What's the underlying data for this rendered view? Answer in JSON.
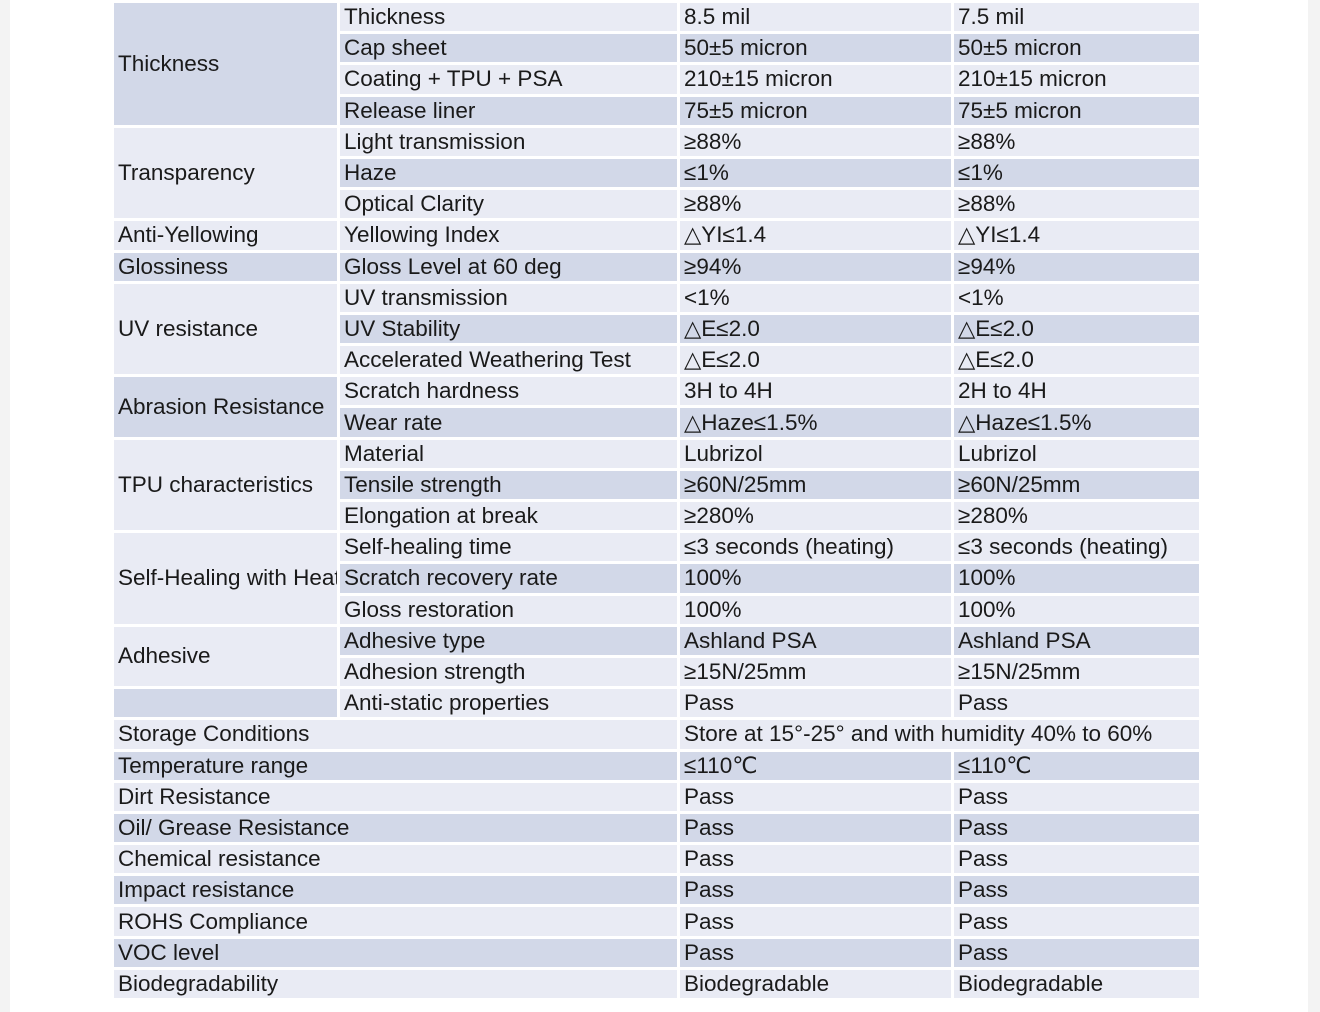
{
  "groups": {
    "thickness": "Thickness",
    "transparency": "Transparency",
    "anti_yellowing": "Anti-Yellowing",
    "glossiness": "Glossiness",
    "uv_resistance": "UV resistance",
    "abrasion": "Abrasion Resistance",
    "tpu": "TPU characteristics",
    "self_healing": "Self-Healing  with Heat",
    "adhesive": "Adhesive",
    "blank": ""
  },
  "rows": [
    {
      "param": "Thickness",
      "a": "8.5 mil",
      "b": "7.5 mil"
    },
    {
      "param": "Cap sheet",
      "a": "50±5 micron",
      "b": "50±5 micron"
    },
    {
      "param": "Coating + TPU + PSA",
      "a": "210±15 micron",
      "b": "210±15 micron"
    },
    {
      "param": "Release liner",
      "a": "75±5 micron",
      "b": "75±5 micron"
    },
    {
      "param": "Light transmission",
      "a": "≥88%",
      "b": "≥88%"
    },
    {
      "param": "Haze",
      "a": "≤1%",
      "b": "≤1%"
    },
    {
      "param": "Optical Clarity",
      "a": "≥88%",
      "b": "≥88%"
    },
    {
      "param": "Yellowing Index",
      "a": "△YI≤1.4",
      "b": "△YI≤1.4"
    },
    {
      "param": "Gloss Level at 60 deg",
      "a": "≥94%",
      "b": "≥94%"
    },
    {
      "param": "UV transmission",
      "a": "<1%",
      "b": "<1%"
    },
    {
      "param": "UV Stability",
      "a": "△E≤2.0",
      "b": "△E≤2.0"
    },
    {
      "param": "Accelerated Weathering Test",
      "a": "△E≤2.0",
      "b": "△E≤2.0"
    },
    {
      "param": "Scratch hardness",
      "a": "3H to 4H",
      "b": "2H to 4H"
    },
    {
      "param": "Wear rate",
      "a": "△Haze≤1.5%",
      "b": "△Haze≤1.5%"
    },
    {
      "param": "Material",
      "a": "Lubrizol",
      "b": "Lubrizol"
    },
    {
      "param": "Tensile strength",
      "a": "≥60N/25mm",
      "b": "≥60N/25mm"
    },
    {
      "param": "Elongation at break",
      "a": "≥280%",
      "b": "≥280%"
    },
    {
      "param": "Self-healing time",
      "a": "≤3 seconds (heating)",
      "b": "≤3 seconds (heating)"
    },
    {
      "param": "Scratch recovery rate",
      "a": "100%",
      "b": "100%"
    },
    {
      "param": "Gloss restoration",
      "a": "100%",
      "b": "100%"
    },
    {
      "param": "Adhesive type",
      "a": "Ashland PSA",
      "b": "Ashland PSA"
    },
    {
      "param": "Adhesion strength",
      "a": "≥15N/25mm",
      "b": "≥15N/25mm"
    },
    {
      "param": "Anti-static properties",
      "a": "Pass",
      "b": "Pass"
    }
  ],
  "wide_rows": [
    {
      "label": "Storage Conditions",
      "span": "Store at 15°-25° and with humidity 40% to 60%"
    },
    {
      "label": "Temperature range",
      "a": "≤110℃",
      "b": "≤110℃"
    },
    {
      "label": "Dirt Resistance",
      "a": "Pass",
      "b": "Pass"
    },
    {
      "label": "Oil/ Grease Resistance",
      "a": "Pass",
      "b": "Pass"
    },
    {
      "label": "Chemical resistance",
      "a": "Pass",
      "b": "Pass"
    },
    {
      "label": "Impact resistance",
      "a": "Pass",
      "b": "Pass"
    },
    {
      "label": "ROHS Compliance",
      "a": "Pass",
      "b": "Pass"
    },
    {
      "label": "VOC level",
      "a": "Pass",
      "b": "Pass"
    },
    {
      "label": "Biodegradability",
      "a": "Biodegradable",
      "b": "Biodegradable"
    }
  ],
  "colors": {
    "row_light": "#e9ebf4",
    "row_dark": "#d2d8e8",
    "text": "#1a1a1a"
  }
}
